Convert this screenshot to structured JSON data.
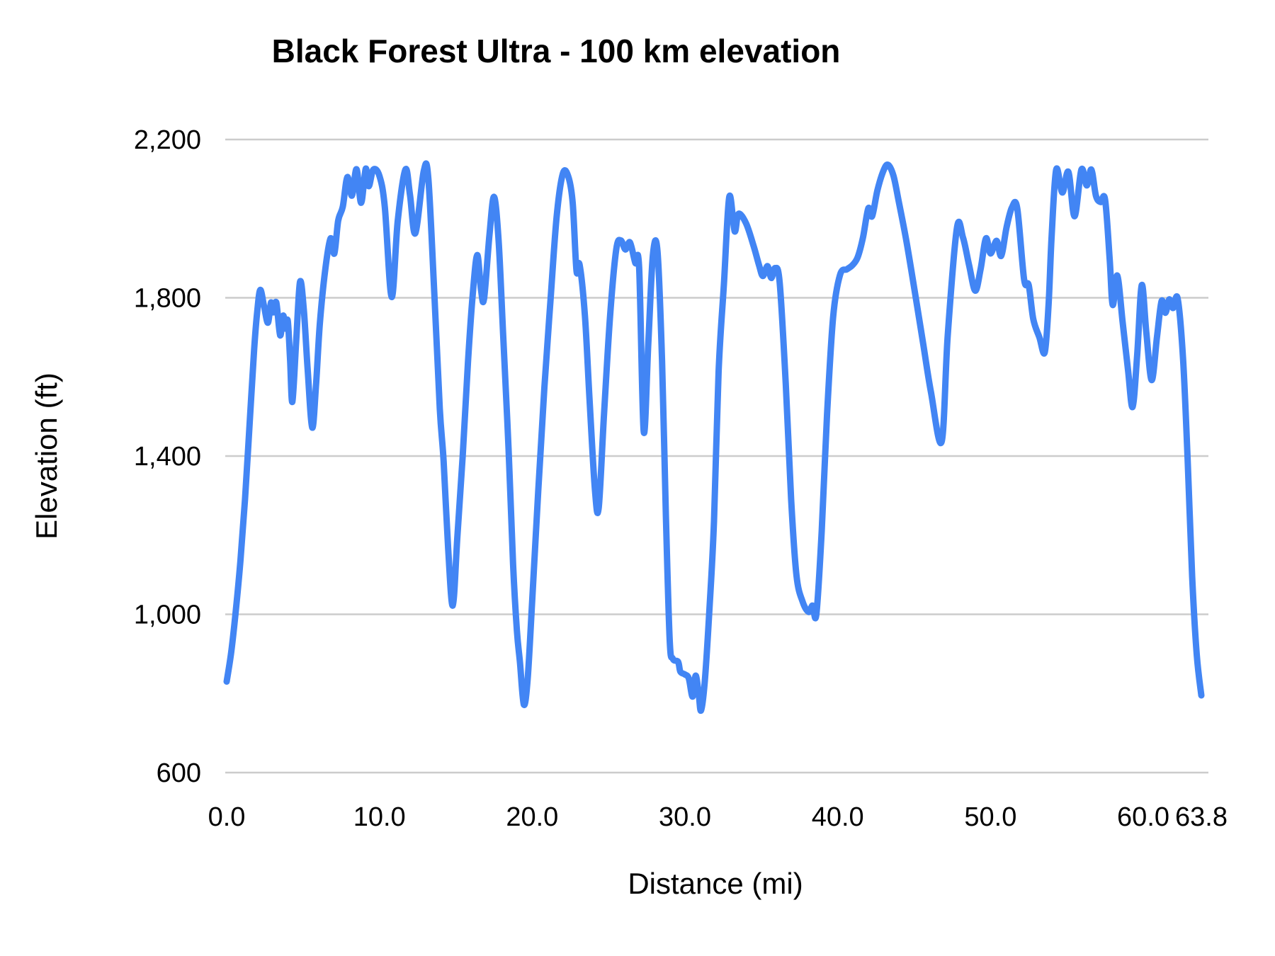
{
  "chart_data": {
    "type": "line",
    "title": "Black Forest Ultra - 100 km elevation",
    "xlabel": "Distance (mi)",
    "ylabel": "Elevation (ft)",
    "xlim": [
      0,
      63.8
    ],
    "ylim": [
      600,
      2200
    ],
    "grid": "horizontal-only",
    "legend": "none",
    "x_ticks": [
      {
        "value": 0.0,
        "label": "0.0"
      },
      {
        "value": 10.0,
        "label": "10.0"
      },
      {
        "value": 20.0,
        "label": "20.0"
      },
      {
        "value": 30.0,
        "label": "30.0"
      },
      {
        "value": 40.0,
        "label": "40.0"
      },
      {
        "value": 50.0,
        "label": "50.0"
      },
      {
        "value": 60.0,
        "label": "60.0"
      },
      {
        "value": 63.8,
        "label": "63.8"
      }
    ],
    "y_ticks": [
      {
        "value": 600,
        "label": "600"
      },
      {
        "value": 1000,
        "label": "1,000"
      },
      {
        "value": 1400,
        "label": "1,400"
      },
      {
        "value": 1800,
        "label": "1,800"
      },
      {
        "value": 2200,
        "label": "2,200"
      }
    ],
    "series": [
      {
        "name": "elevation-profile",
        "color": "#4285f4",
        "points": [
          [
            0,
            830
          ],
          [
            0.3,
            905
          ],
          [
            0.6,
            1010
          ],
          [
            0.9,
            1135
          ],
          [
            1.2,
            1290
          ],
          [
            1.5,
            1480
          ],
          [
            1.8,
            1670
          ],
          [
            2.0,
            1765
          ],
          [
            2.2,
            1820
          ],
          [
            2.45,
            1778
          ],
          [
            2.7,
            1737
          ],
          [
            2.9,
            1788
          ],
          [
            3.05,
            1763
          ],
          [
            3.25,
            1788
          ],
          [
            3.5,
            1705
          ],
          [
            3.7,
            1755
          ],
          [
            3.85,
            1722
          ],
          [
            4.0,
            1742
          ],
          [
            4.15,
            1645
          ],
          [
            4.3,
            1537
          ],
          [
            4.55,
            1690
          ],
          [
            4.8,
            1840
          ],
          [
            5.05,
            1770
          ],
          [
            5.3,
            1620
          ],
          [
            5.6,
            1472
          ],
          [
            5.85,
            1580
          ],
          [
            6.1,
            1735
          ],
          [
            6.45,
            1870
          ],
          [
            6.8,
            1950
          ],
          [
            7.05,
            1912
          ],
          [
            7.3,
            1995
          ],
          [
            7.6,
            2030
          ],
          [
            7.9,
            2105
          ],
          [
            8.2,
            2058
          ],
          [
            8.5,
            2125
          ],
          [
            8.8,
            2040
          ],
          [
            9.1,
            2126
          ],
          [
            9.3,
            2082
          ],
          [
            9.6,
            2124
          ],
          [
            10.0,
            2108
          ],
          [
            10.35,
            2030
          ],
          [
            10.8,
            1802
          ],
          [
            11.2,
            1995
          ],
          [
            11.7,
            2124
          ],
          [
            12.0,
            2060
          ],
          [
            12.35,
            1963
          ],
          [
            12.9,
            2120
          ],
          [
            13.2,
            2102
          ],
          [
            13.6,
            1805
          ],
          [
            13.95,
            1520
          ],
          [
            14.2,
            1388
          ],
          [
            14.5,
            1165
          ],
          [
            14.8,
            1022
          ],
          [
            15.1,
            1195
          ],
          [
            15.45,
            1400
          ],
          [
            15.8,
            1640
          ],
          [
            16.1,
            1805
          ],
          [
            16.4,
            1908
          ],
          [
            16.65,
            1820
          ],
          [
            16.85,
            1798
          ],
          [
            17.2,
            1958
          ],
          [
            17.5,
            2055
          ],
          [
            17.8,
            1945
          ],
          [
            18.1,
            1705
          ],
          [
            18.45,
            1420
          ],
          [
            18.75,
            1125
          ],
          [
            19.0,
            958
          ],
          [
            19.2,
            878
          ],
          [
            19.45,
            772
          ],
          [
            19.7,
            835
          ],
          [
            20.0,
            1035
          ],
          [
            20.4,
            1315
          ],
          [
            20.8,
            1575
          ],
          [
            21.2,
            1795
          ],
          [
            21.6,
            2005
          ],
          [
            22.0,
            2113
          ],
          [
            22.35,
            2108
          ],
          [
            22.65,
            2040
          ],
          [
            22.9,
            1868
          ],
          [
            23.1,
            1884
          ],
          [
            23.45,
            1755
          ],
          [
            23.75,
            1545
          ],
          [
            24.1,
            1318
          ],
          [
            24.35,
            1268
          ],
          [
            24.7,
            1505
          ],
          [
            25.1,
            1755
          ],
          [
            25.5,
            1922
          ],
          [
            25.8,
            1945
          ],
          [
            26.1,
            1922
          ],
          [
            26.4,
            1940
          ],
          [
            26.75,
            1888
          ],
          [
            27.0,
            1876
          ],
          [
            27.3,
            1462
          ],
          [
            27.6,
            1685
          ],
          [
            27.9,
            1908
          ],
          [
            28.2,
            1918
          ],
          [
            28.5,
            1640
          ],
          [
            28.75,
            1250
          ],
          [
            29.0,
            935
          ],
          [
            29.2,
            888
          ],
          [
            29.55,
            880
          ],
          [
            29.7,
            855
          ],
          [
            30.0,
            848
          ],
          [
            30.25,
            838
          ],
          [
            30.5,
            792
          ],
          [
            30.7,
            845
          ],
          [
            30.9,
            798
          ],
          [
            31.05,
            757
          ],
          [
            31.3,
            832
          ],
          [
            31.6,
            1012
          ],
          [
            31.9,
            1235
          ],
          [
            32.2,
            1612
          ],
          [
            32.55,
            1835
          ],
          [
            32.9,
            2055
          ],
          [
            33.25,
            1968
          ],
          [
            33.5,
            2012
          ],
          [
            34.0,
            1988
          ],
          [
            34.5,
            1930
          ],
          [
            34.85,
            1882
          ],
          [
            35.1,
            1855
          ],
          [
            35.4,
            1880
          ],
          [
            35.65,
            1850
          ],
          [
            35.9,
            1875
          ],
          [
            36.2,
            1838
          ],
          [
            36.6,
            1580
          ],
          [
            36.95,
            1290
          ],
          [
            37.3,
            1098
          ],
          [
            37.7,
            1032
          ],
          [
            38.1,
            1006
          ],
          [
            38.35,
            1022
          ],
          [
            38.6,
            1000
          ],
          [
            38.95,
            1210
          ],
          [
            39.3,
            1505
          ],
          [
            39.7,
            1752
          ],
          [
            40.15,
            1858
          ],
          [
            40.6,
            1872
          ],
          [
            40.95,
            1882
          ],
          [
            41.3,
            1902
          ],
          [
            41.65,
            1952
          ],
          [
            42.0,
            2026
          ],
          [
            42.25,
            2006
          ],
          [
            42.6,
            2072
          ],
          [
            43.0,
            2122
          ],
          [
            43.3,
            2136
          ],
          [
            43.65,
            2108
          ],
          [
            44.0,
            2042
          ],
          [
            44.5,
            1942
          ],
          [
            45.1,
            1802
          ],
          [
            45.6,
            1682
          ],
          [
            46.1,
            1562
          ],
          [
            46.8,
            1436
          ],
          [
            47.2,
            1705
          ],
          [
            47.8,
            1976
          ],
          [
            48.2,
            1952
          ],
          [
            48.6,
            1882
          ],
          [
            49.0,
            1818
          ],
          [
            49.35,
            1872
          ],
          [
            49.7,
            1950
          ],
          [
            50.0,
            1912
          ],
          [
            50.4,
            1944
          ],
          [
            50.7,
            1906
          ],
          [
            51.05,
            1978
          ],
          [
            51.4,
            2028
          ],
          [
            51.75,
            2026
          ],
          [
            52.2,
            1846
          ],
          [
            52.5,
            1832
          ],
          [
            52.8,
            1746
          ],
          [
            53.2,
            1700
          ],
          [
            53.55,
            1662
          ],
          [
            53.8,
            1782
          ],
          [
            54.0,
            1955
          ],
          [
            54.3,
            2124
          ],
          [
            54.7,
            2066
          ],
          [
            55.1,
            2118
          ],
          [
            55.5,
            2006
          ],
          [
            55.95,
            2124
          ],
          [
            56.3,
            2084
          ],
          [
            56.6,
            2124
          ],
          [
            56.9,
            2058
          ],
          [
            57.2,
            2042
          ],
          [
            57.5,
            2048
          ],
          [
            57.8,
            1898
          ],
          [
            58.0,
            1782
          ],
          [
            58.3,
            1856
          ],
          [
            58.65,
            1738
          ],
          [
            59.0,
            1618
          ],
          [
            59.3,
            1524
          ],
          [
            59.6,
            1655
          ],
          [
            59.9,
            1832
          ],
          [
            60.2,
            1712
          ],
          [
            60.55,
            1592
          ],
          [
            60.9,
            1702
          ],
          [
            61.2,
            1792
          ],
          [
            61.45,
            1762
          ],
          [
            61.7,
            1796
          ],
          [
            61.95,
            1774
          ],
          [
            62.25,
            1798
          ],
          [
            62.6,
            1648
          ],
          [
            62.9,
            1395
          ],
          [
            63.2,
            1095
          ],
          [
            63.5,
            898
          ],
          [
            63.8,
            795
          ]
        ]
      }
    ],
    "colors": {
      "line": "#4285f4",
      "gridline": "#cccccc",
      "tick_text": "#000000",
      "title_text": "#000000"
    }
  }
}
